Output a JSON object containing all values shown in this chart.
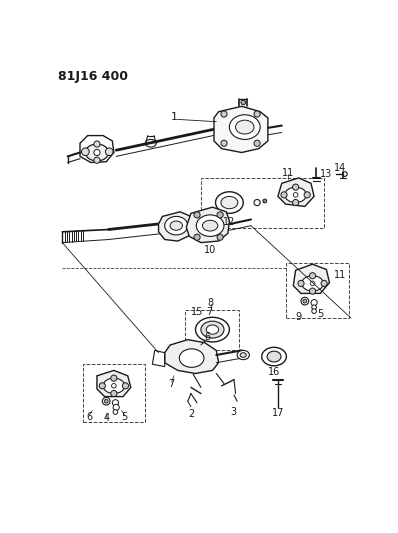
{
  "title": "81J16 400",
  "bg": "#ffffff",
  "lc": "#1a1a1a",
  "dlc": "#444444",
  "gray": "#888888",
  "dgray": "#555555",
  "fig_w": 3.98,
  "fig_h": 5.33,
  "dpi": 100
}
